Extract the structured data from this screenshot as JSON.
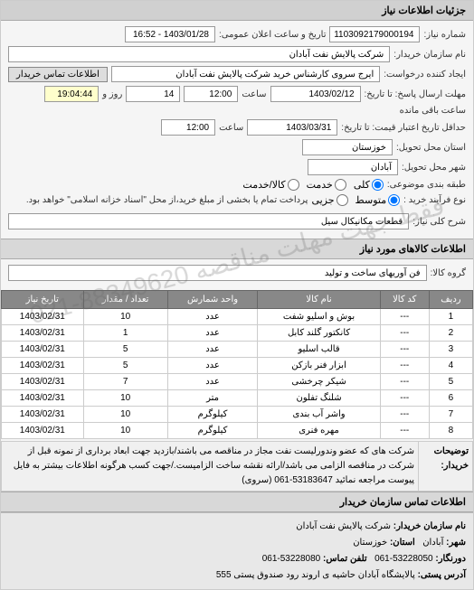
{
  "header": "جزئیات اطلاعات نیاز",
  "form": {
    "request_no_label": "شماره نیاز:",
    "request_no": "1103092179000194",
    "announce_label": "تاریخ و ساعت اعلان عمومی:",
    "announce_value": "1403/01/28 - 16:52",
    "buyer_org_label": "نام سازمان خریدار:",
    "buyer_org": "شرکت پالایش نفت آبادان",
    "requester_label": "ایجاد کننده درخواست:",
    "requester": "ایرج سروی کارشناس خرید شرکت پالایش نفت آبادان",
    "contact_btn": "اطلاعات تماس خریدار",
    "deadline_label": "مهلت ارسال پاسخ: تا تاریخ:",
    "deadline_date": "1403/02/12",
    "time_label": "ساعت",
    "deadline_time": "12:00",
    "day_label": "روز و",
    "day_value": "14",
    "remain_label": "ساعت باقی مانده",
    "remain_time": "19:04:44",
    "validity_label": "حداقل تاریخ اعتبار قیمت: تا تاریخ:",
    "validity_date": "1403/03/31",
    "validity_time": "12:00",
    "province_label": "استان محل تحویل:",
    "province": "خوزستان",
    "city_label": "شهر محل تحویل:",
    "city": "آبادان",
    "group_label": "طبقه بندی موضوعی:",
    "radios": {
      "all": "کلی",
      "service": "خدمت",
      "goods": "کالا/خدمت"
    },
    "process_label": "نوع فرآیند خرید :",
    "process_radios": {
      "hard": "متوسط",
      "medium": "جزیی"
    },
    "process_note": "پرداخت تمام یا بخشی از مبلغ خرید،از محل \"اسناد خزانه اسلامی\" خواهد بود.",
    "desc_label": "شرح کلی نیاز:",
    "desc": "قطعات مکانیکال سیل"
  },
  "items_header": "اطلاعات کالاهای مورد نیاز",
  "group_label": "گروه کالا:",
  "group_value": "فن آوریهای ساخت و تولید",
  "table": {
    "cols": [
      "ردیف",
      "کد کالا",
      "نام کالا",
      "واحد شمارش",
      "تعداد / مقدار",
      "تاریخ نیاز"
    ],
    "rows": [
      [
        "1",
        "---",
        "بوش و اسلیو شفت",
        "عدد",
        "10",
        "1403/02/31"
      ],
      [
        "2",
        "---",
        "کانکتور گلند کابل",
        "عدد",
        "1",
        "1403/02/31"
      ],
      [
        "3",
        "---",
        "قالب اسلیو",
        "عدد",
        "5",
        "1403/02/31"
      ],
      [
        "4",
        "---",
        "ابزار فنر بازکن",
        "عدد",
        "5",
        "1403/02/31"
      ],
      [
        "5",
        "---",
        "شیکر چرخشی",
        "عدد",
        "7",
        "1403/02/31"
      ],
      [
        "6",
        "---",
        "شلنگ تفلون",
        "متر",
        "10",
        "1403/02/31"
      ],
      [
        "7",
        "---",
        "واشر آب بندی",
        "کیلوگرم",
        "10",
        "1403/02/31"
      ],
      [
        "8",
        "---",
        "مهره فنری",
        "کیلوگرم",
        "10",
        "1403/02/31"
      ]
    ]
  },
  "explain_label": "توضیحات خریدار:",
  "explain": "شرکت های که عضو وندورلیست نفت مجاز در مناقصه می باشند/بازدید جهت ابعاد برداری از نمونه قبل از شرکت در مناقصه الزامی می باشد/ارائه نقشه ساخت الزامیست./جهت کسب هرگونه اطلاعات بیشتر به فایل پیوست مراجعه نمائید 53183647-061 (سروی)",
  "footer": {
    "title": "اطلاعات تماس سازمان خریدار",
    "org_label": "نام سازمان خریدار:",
    "org": "شرکت پالایش نفت آبادان",
    "city_label": "شهر:",
    "city": "آبادان",
    "province_label": "استان:",
    "province": "خوزستان",
    "fax_label": "دورنگار:",
    "fax": "53228050-061",
    "tel_label": "تلفن تماس:",
    "tel": "53228080-061",
    "addr_label": "آدرس پستی:",
    "addr": "پالایشگاه آبادان حاشیه ی اروند رود صندوق پستی 555"
  },
  "watermark": "فقط جهت مهلت مناقصه 88349620-021"
}
